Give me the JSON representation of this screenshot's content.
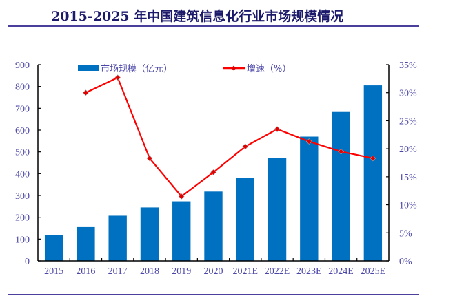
{
  "title": "2015-2025 年中国建筑信息化行业市场规模情况",
  "colors": {
    "bar": "#0070c0",
    "line": "#ff0000",
    "marker": "#e00000",
    "axis_text": "#4b47a8",
    "title": "#1c1a6b",
    "rule": "#4a3f9a"
  },
  "chart_data": {
    "type": "bar",
    "title": "2015-2025 年中国建筑信息化行业市场规模情况",
    "categories": [
      "2015",
      "2016",
      "2017",
      "2018",
      "2019",
      "2020",
      "2021E",
      "2022E",
      "2023E",
      "2024E",
      "2025E"
    ],
    "series": [
      {
        "name": "市场规模（亿元）",
        "type": "bar",
        "axis": "left",
        "values": [
          117,
          155,
          207,
          245,
          273,
          318,
          382,
          472,
          570,
          683,
          805
        ]
      },
      {
        "name": "增速（%）",
        "type": "line",
        "axis": "right",
        "values": [
          null,
          30.0,
          32.7,
          18.3,
          11.5,
          15.8,
          20.4,
          23.5,
          21.3,
          19.5,
          18.3
        ]
      }
    ],
    "y_left": {
      "ylim": [
        0,
        900
      ],
      "ticks": [
        0,
        100,
        200,
        300,
        400,
        500,
        600,
        700,
        800,
        900
      ],
      "tick_labels": [
        "0",
        "100",
        "200",
        "300",
        "400",
        "500",
        "600",
        "700",
        "800",
        "900"
      ]
    },
    "y_right": {
      "ylim": [
        0,
        35
      ],
      "ticks": [
        0,
        5,
        10,
        15,
        20,
        25,
        30,
        35
      ],
      "tick_labels": [
        "0%",
        "5%",
        "10%",
        "15%",
        "20%",
        "25%",
        "30%",
        "35%"
      ]
    },
    "xlabel": "",
    "ylabel": "",
    "grid": false,
    "legend": {
      "position": "top",
      "entries": [
        "市场规模（亿元）",
        "增速（%）"
      ]
    }
  }
}
